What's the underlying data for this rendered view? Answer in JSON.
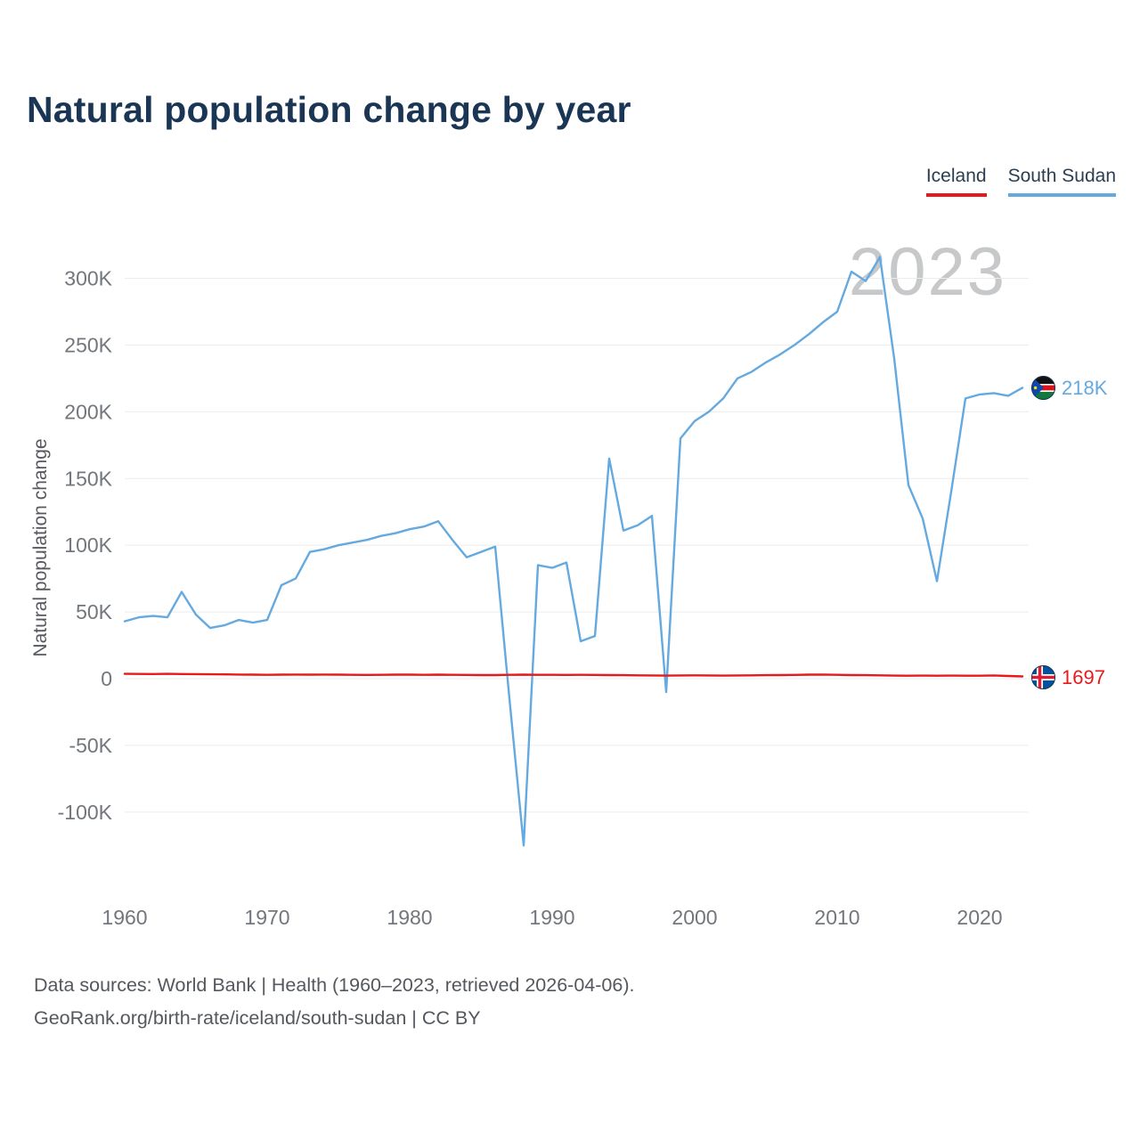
{
  "title": "Natural population change by year",
  "watermark": "2023",
  "y_axis_title": "Natural population change",
  "legend": [
    {
      "label": "Iceland",
      "color": "#e8191c"
    },
    {
      "label": "South Sudan",
      "color": "#64a9df"
    }
  ],
  "footer": {
    "line1": "Data sources: World Bank | Health (1960–2023, retrieved 2026-04-06).",
    "line2": "GeoRank.org/birth-rate/iceland/south-sudan | CC BY"
  },
  "chart_data": {
    "type": "line",
    "title": "Natural population change by year",
    "xlabel": "",
    "ylabel": "Natural population change",
    "ylim": [
      -130000,
      320000
    ],
    "grid": "horizontal",
    "legend_position": "top-right",
    "x": [
      1960,
      1961,
      1962,
      1963,
      1964,
      1965,
      1966,
      1967,
      1968,
      1969,
      1970,
      1971,
      1972,
      1973,
      1974,
      1975,
      1976,
      1977,
      1978,
      1979,
      1980,
      1981,
      1982,
      1983,
      1984,
      1985,
      1986,
      1987,
      1988,
      1989,
      1990,
      1991,
      1992,
      1993,
      1994,
      1995,
      1996,
      1997,
      1998,
      1999,
      2000,
      2001,
      2002,
      2003,
      2004,
      2005,
      2006,
      2007,
      2008,
      2009,
      2010,
      2011,
      2012,
      2013,
      2014,
      2015,
      2016,
      2017,
      2018,
      2019,
      2020,
      2021,
      2022,
      2023
    ],
    "x_ticks": [
      1960,
      1970,
      1980,
      1990,
      2000,
      2010,
      2020
    ],
    "y_ticks": [
      {
        "value": 300000,
        "label": "300K"
      },
      {
        "value": 250000,
        "label": "250K"
      },
      {
        "value": 200000,
        "label": "200K"
      },
      {
        "value": 150000,
        "label": "150K"
      },
      {
        "value": 100000,
        "label": "100K"
      },
      {
        "value": 50000,
        "label": "50K"
      },
      {
        "value": 0,
        "label": "0"
      },
      {
        "value": -50000,
        "label": "-50K"
      },
      {
        "value": -100000,
        "label": "-100K"
      }
    ],
    "series": [
      {
        "id": "south-sudan",
        "name": "South Sudan",
        "color": "#64a9df",
        "end_label": "218K",
        "values": [
          43000,
          46000,
          47000,
          46000,
          65000,
          48000,
          38000,
          40000,
          44000,
          42000,
          44000,
          70000,
          75000,
          95000,
          97000,
          100000,
          102000,
          104000,
          107000,
          109000,
          112000,
          114000,
          118000,
          104000,
          91000,
          95000,
          99000,
          -15000,
          -125000,
          85000,
          83000,
          87000,
          28000,
          32000,
          165000,
          111000,
          115000,
          122000,
          -10000,
          180000,
          193000,
          200000,
          210000,
          225000,
          230000,
          237000,
          243000,
          250000,
          258000,
          267000,
          275000,
          305000,
          298000,
          316000,
          240000,
          145000,
          120000,
          73000,
          140000,
          210000,
          213000,
          214000,
          212000,
          218000
        ]
      },
      {
        "id": "iceland",
        "name": "Iceland",
        "color": "#e8191c",
        "end_label": "1697",
        "values": [
          3600,
          3550,
          3500,
          3600,
          3500,
          3400,
          3300,
          3200,
          3100,
          3000,
          2900,
          3000,
          3100,
          3000,
          3100,
          3000,
          2900,
          2800,
          2900,
          3000,
          3000,
          2900,
          3000,
          2900,
          2800,
          2700,
          2700,
          2900,
          3000,
          2900,
          2900,
          2800,
          2900,
          2800,
          2700,
          2600,
          2500,
          2400,
          2300,
          2400,
          2500,
          2400,
          2300,
          2400,
          2500,
          2600,
          2700,
          2800,
          3000,
          3100,
          2900,
          2700,
          2600,
          2500,
          2300,
          2200,
          2300,
          2200,
          2300,
          2200,
          2200,
          2400,
          2000,
          1697
        ]
      }
    ]
  }
}
